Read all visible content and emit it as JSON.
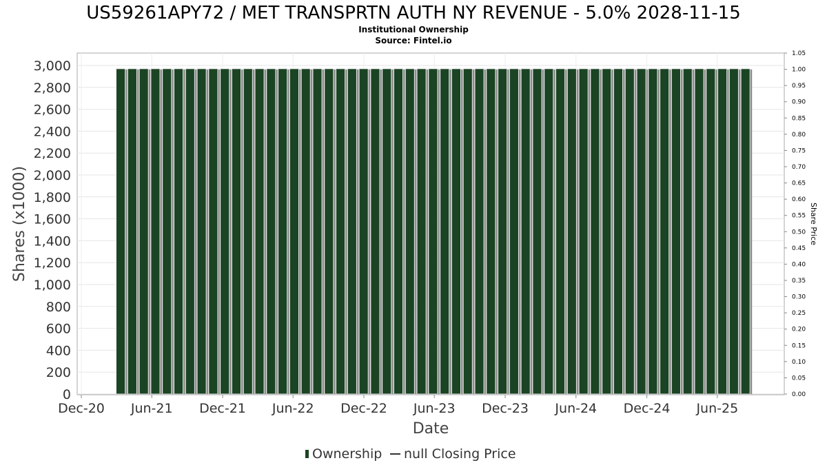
{
  "chart_data": {
    "type": "bar",
    "title": "US59261APY72 / MET TRANSPRTN AUTH NY REVENUE - 5.0% 2028-11-15",
    "subtitle_lines": [
      "Institutional Ownership",
      "Source: Fintel.io"
    ],
    "xlabel": "Date",
    "ylabel": "Shares (x1000)",
    "y2label": "Share Price",
    "ylim": [
      0,
      3000
    ],
    "y_ticks": [
      0,
      200,
      400,
      600,
      800,
      1000,
      1200,
      1400,
      1600,
      1800,
      2000,
      2200,
      2400,
      2600,
      2800,
      3000
    ],
    "y_tick_labels": [
      "0",
      "200",
      "400",
      "600",
      "800",
      "1,000",
      "1,200",
      "1,400",
      "1,600",
      "1,800",
      "2,000",
      "2,200",
      "2,400",
      "2,600",
      "2,800",
      "3,000"
    ],
    "y2lim": [
      0,
      1.05
    ],
    "y2_tick_labels": [
      "0.00",
      "0.05",
      "0.10",
      "0.15",
      "0.20",
      "0.25",
      "0.30",
      "0.35",
      "0.40",
      "0.45",
      "0.50",
      "0.55",
      "0.60",
      "0.65",
      "0.70",
      "0.75",
      "0.80",
      "0.85",
      "0.90",
      "0.95",
      "1.00",
      "1.05"
    ],
    "x_range": [
      "2020-12-01",
      "2025-10-20"
    ],
    "x_ticks": [
      {
        "date": "2020-12-01",
        "label": "Dec-20"
      },
      {
        "date": "2021-06-01",
        "label": "Jun-21"
      },
      {
        "date": "2021-12-01",
        "label": "Dec-21"
      },
      {
        "date": "2022-06-01",
        "label": "Jun-22"
      },
      {
        "date": "2022-12-01",
        "label": "Dec-22"
      },
      {
        "date": "2023-06-01",
        "label": "Jun-23"
      },
      {
        "date": "2023-12-01",
        "label": "Dec-23"
      },
      {
        "date": "2024-06-01",
        "label": "Jun-24"
      },
      {
        "date": "2024-12-01",
        "label": "Dec-24"
      },
      {
        "date": "2025-06-01",
        "label": "Jun-25"
      }
    ],
    "series": [
      {
        "name": "Ownership",
        "color": "#1a4423",
        "x_start": "2021-03-01",
        "x_end": "2025-08-31",
        "bar_count": 55,
        "value": 2970
      }
    ],
    "legend": {
      "position": "bottom",
      "items": [
        {
          "label": "Ownership",
          "marker": "bar",
          "color": "#1a4423"
        },
        {
          "label": "null Closing Price",
          "marker": "line",
          "color": "#333333"
        }
      ]
    },
    "grid": true
  }
}
